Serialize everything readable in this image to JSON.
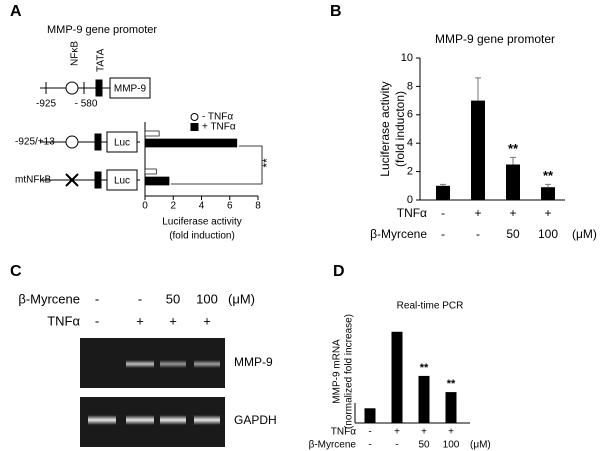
{
  "panel_labels": [
    "A",
    "B",
    "C",
    "D"
  ],
  "promoter_diagram": {
    "title": "MMP-9 gene promoter",
    "elements": [
      "NFκB",
      "TATA",
      "MMP-9"
    ],
    "positions": [
      "-925",
      "- 580"
    ],
    "reporter": "Luc"
  },
  "chart_data": [
    {
      "type": "hbar",
      "categories": [
        "-925/+13",
        "mtNFkB"
      ],
      "series": [
        {
          "name": "- TNFα",
          "color": "#ffffff",
          "values": [
            1,
            0.8
          ]
        },
        {
          "name": "+ TNFα",
          "color": "#000000",
          "values": [
            6.5,
            1.7
          ]
        }
      ],
      "xlim": [
        0,
        8
      ],
      "xticks": [
        0,
        2,
        4,
        6,
        8
      ],
      "xlabel": [
        "Luciferase activity",
        "(fold induction)"
      ],
      "significance": "**"
    },
    {
      "type": "bar",
      "title": "MMP-9 gene promoter",
      "values": [
        1,
        7,
        2.5,
        0.9
      ],
      "errors": [
        0.1,
        1.6,
        0.5,
        0.2
      ],
      "color": "#000000",
      "annotations": [
        null,
        null,
        "**",
        "**"
      ],
      "ylim": [
        0,
        10
      ],
      "yticks": [
        0,
        2,
        4,
        6,
        8,
        10
      ],
      "ylabel": [
        "Luciferase activity",
        "(fold inducton)"
      ],
      "treatments": [
        {
          "name": "TNFα",
          "values": [
            "-",
            "+",
            "+",
            "+"
          ]
        },
        {
          "name": "β-Myrcene",
          "values": [
            "-",
            "-",
            "50",
            "100"
          ],
          "unit": "(μM)"
        }
      ]
    },
    {
      "type": "bar",
      "title": "Real-time PCR",
      "values": [
        1,
        6.2,
        3.2,
        2.1
      ],
      "color": "#000000",
      "annotations": [
        null,
        null,
        "**",
        "**"
      ],
      "ylim": [
        0,
        7
      ],
      "ylabel": [
        "MMP-9 mRNA",
        "(normalized fold increase)"
      ],
      "treatments": [
        {
          "name": "TNFα",
          "values": [
            "-",
            "+",
            "+",
            "+"
          ]
        },
        {
          "name": "β-Myrcene",
          "values": [
            "-",
            "-",
            "50",
            "100"
          ],
          "unit": "(μM)"
        }
      ]
    }
  ],
  "gel": {
    "treatments": [
      {
        "name": "β-Myrcene",
        "values": [
          "-",
          "-",
          "50",
          "100"
        ],
        "unit": "(μM)"
      },
      {
        "name": "TNFα",
        "values": [
          "-",
          "+",
          "+",
          "+"
        ]
      }
    ],
    "bands": [
      "MMP-9",
      "GAPDH"
    ]
  }
}
